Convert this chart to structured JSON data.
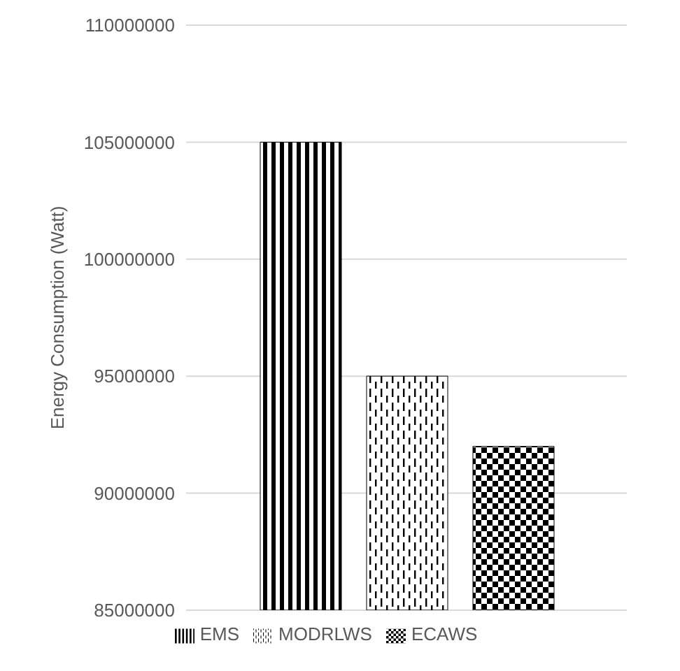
{
  "chart_data": {
    "type": "bar",
    "ylabel": "Energy Consumption (Watt)",
    "categories": [
      null
    ],
    "series": [
      {
        "name": "EMS",
        "color": "#000000",
        "values": [
          105000000
        ]
      },
      {
        "name": "MODRLWS",
        "color": "#000000",
        "values": [
          95000000
        ]
      },
      {
        "name": "ECAWS",
        "color": "#000000",
        "values": [
          92000000
        ]
      }
    ],
    "ylim": [
      85000000,
      110000000
    ],
    "yticks": [
      85000000,
      90000000,
      95000000,
      100000000,
      105000000,
      110000000
    ],
    "grid": "y",
    "legend": "bottom"
  }
}
